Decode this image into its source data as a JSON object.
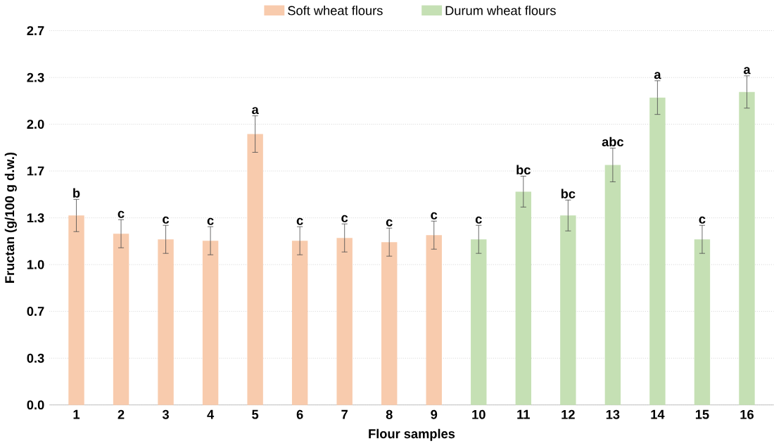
{
  "chart_data": {
    "type": "bar",
    "xlabel": "Flour samples",
    "ylabel": "Fructan (g/100 g d.w.)",
    "categories": [
      "1",
      "2",
      "3",
      "4",
      "5",
      "6",
      "7",
      "8",
      "9",
      "10",
      "11",
      "12",
      "13",
      "14",
      "15",
      "16"
    ],
    "series": [
      {
        "name": "Soft wheat flours",
        "color": "#f8cbad",
        "values": [
          1.35,
          1.22,
          1.18,
          1.17,
          1.93,
          1.17,
          1.19,
          1.16,
          1.21,
          null,
          null,
          null,
          null,
          null,
          null,
          null
        ],
        "errors": [
          0.115,
          0.1,
          0.1,
          0.1,
          0.13,
          0.1,
          0.1,
          0.1,
          0.1,
          null,
          null,
          null,
          null,
          null,
          null,
          null
        ]
      },
      {
        "name": "Durum wheat flours",
        "color": "#c5e0b4",
        "values": [
          null,
          null,
          null,
          null,
          null,
          null,
          null,
          null,
          null,
          1.18,
          1.52,
          1.35,
          1.71,
          2.19,
          1.18,
          2.23
        ],
        "errors": [
          null,
          null,
          null,
          null,
          null,
          null,
          null,
          null,
          null,
          0.1,
          0.11,
          0.11,
          0.12,
          0.12,
          0.1,
          0.115
        ]
      }
    ],
    "ylim": [
      0,
      2.667
    ],
    "yticks": [
      {
        "value": 0,
        "label": "0.0"
      },
      {
        "value": 0.333,
        "label": "0.3"
      },
      {
        "value": 0.667,
        "label": "0.7"
      },
      {
        "value": 1,
        "label": "1.0"
      },
      {
        "value": 1.333,
        "label": "1.3"
      },
      {
        "value": 1.667,
        "label": "1.7"
      },
      {
        "value": 2,
        "label": "2.0"
      },
      {
        "value": 2.333,
        "label": "2.3"
      },
      {
        "value": 2.667,
        "label": "2.7"
      }
    ],
    "grid": "y",
    "legend": "top",
    "annotations": [
      {
        "text": "b",
        "x": "1",
        "y": 1.465
      },
      {
        "text": "c",
        "x": "2",
        "y": 1.32
      },
      {
        "text": "c",
        "x": "3",
        "y": 1.28
      },
      {
        "text": "c",
        "x": "4",
        "y": 1.27
      },
      {
        "text": "a",
        "x": "5",
        "y": 2.06
      },
      {
        "text": "c",
        "x": "6",
        "y": 1.27
      },
      {
        "text": "c",
        "x": "7",
        "y": 1.29
      },
      {
        "text": "c",
        "x": "8",
        "y": 1.26
      },
      {
        "text": "c",
        "x": "9",
        "y": 1.31
      },
      {
        "text": "c",
        "x": "10",
        "y": 1.28
      },
      {
        "text": "bc",
        "x": "11",
        "y": 1.63
      },
      {
        "text": "bc",
        "x": "12",
        "y": 1.46
      },
      {
        "text": "abc",
        "x": "13",
        "y": 1.83
      },
      {
        "text": "a",
        "x": "14",
        "y": 2.31
      },
      {
        "text": "c",
        "x": "15",
        "y": 1.28
      },
      {
        "text": "a",
        "x": "16",
        "y": 2.345
      }
    ]
  }
}
